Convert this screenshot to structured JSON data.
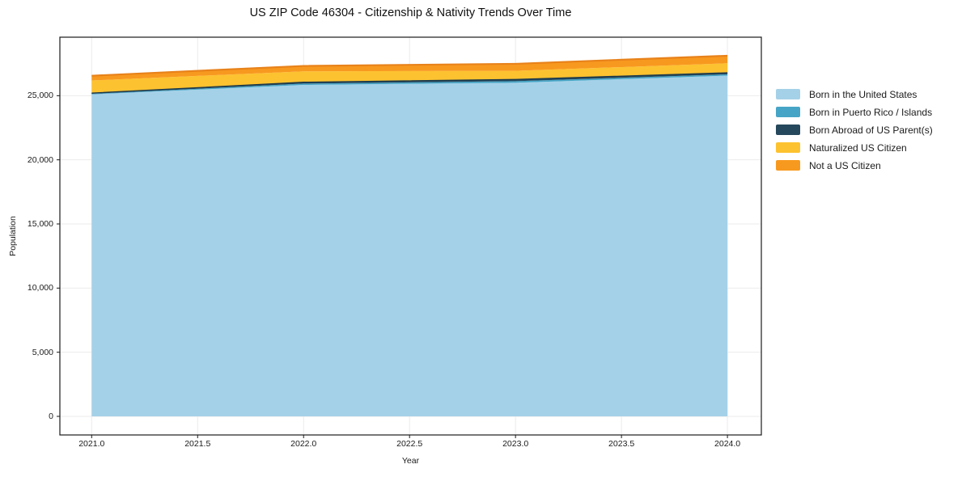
{
  "title": "US ZIP Code 46304 - Citizenship & Nativity Trends Over Time",
  "chart_data": {
    "type": "area",
    "stacked": true,
    "title": "US ZIP Code 46304 - Citizenship & Nativity Trends Over Time",
    "xlabel": "Year",
    "ylabel": "Population",
    "x": [
      2021,
      2022,
      2023,
      2024
    ],
    "series": [
      {
        "name": "Born in the United States",
        "color": "#A5D1E8",
        "values": [
          25100,
          25840,
          26010,
          26560
        ]
      },
      {
        "name": "Born in Puerto Rico / Islands",
        "color": "#46A5C6",
        "values": [
          45,
          100,
          120,
          105
        ]
      },
      {
        "name": "Born Abroad of US Parent(s)",
        "color": "#26485C",
        "edge": "#1B394B",
        "edge_width": 1.3,
        "values": [
          60,
          110,
          135,
          120
        ]
      },
      {
        "name": "Naturalized US Citizen",
        "color": "#FDC230",
        "values": [
          980,
          850,
          670,
          740
        ]
      },
      {
        "name": "Not a US Citizen",
        "color": "#F8991F",
        "edge": "#E8821A",
        "edge_width": 2.2,
        "values": [
          370,
          420,
          550,
          590
        ]
      }
    ],
    "x_ticks": {
      "values": [
        2021.0,
        2021.5,
        2022.0,
        2022.5,
        2023.0,
        2023.5,
        2024.0
      ],
      "labels": [
        "2021.0",
        "2021.5",
        "2022.0",
        "2022.5",
        "2023.0",
        "2023.5",
        "2024.0"
      ]
    },
    "y_ticks": {
      "values": [
        0,
        5000,
        10000,
        15000,
        20000,
        25000
      ],
      "labels": [
        "0",
        "5,000",
        "10,000",
        "15,000",
        "20,000",
        "25,000"
      ]
    },
    "xlim": [
      2020.85,
      2024.16
    ],
    "ylim": [
      -1450,
      29560
    ],
    "grid": true,
    "grid_color": "#ebebeb",
    "spine_color": "#1a1a1a",
    "background_color": "#ffffff",
    "legend_position": "right"
  }
}
